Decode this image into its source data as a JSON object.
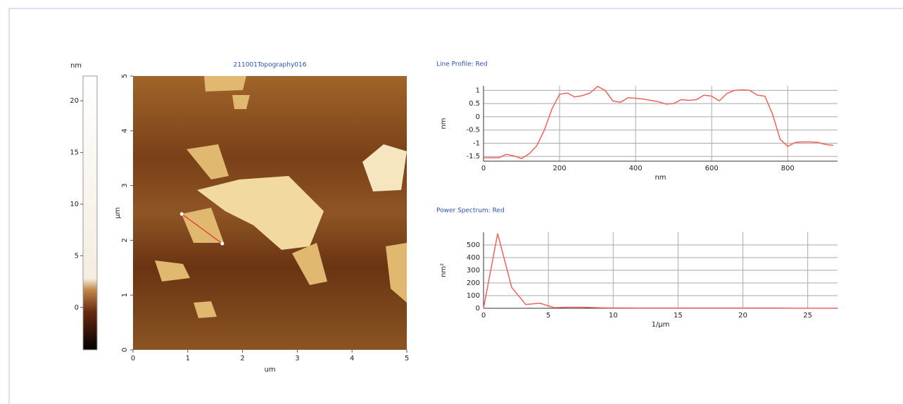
{
  "chart_data": [
    {
      "type": "colorbar",
      "ylabel": "nm",
      "ylim": [
        -4.1,
        22.4
      ],
      "yticks": [
        0,
        5,
        10,
        15,
        20
      ]
    },
    {
      "type": "image",
      "title": "211001Topography016",
      "xlabel": "um",
      "ylabel": "µm",
      "xlim": [
        0,
        5
      ],
      "ylim": [
        0,
        5
      ],
      "xticks": [
        0,
        1,
        2,
        3,
        4,
        5
      ],
      "yticks": [
        0,
        1,
        2,
        3,
        4,
        5
      ],
      "profile_line": {
        "color": "#e8403a",
        "x": [
          0.89,
          1.63
        ],
        "y": [
          2.48,
          1.94
        ]
      }
    },
    {
      "type": "line",
      "title": "Line Profile: Red",
      "xlabel": "nm",
      "ylabel": "nm",
      "color": "#f0625a",
      "grid": true,
      "x": [
        0,
        20,
        40,
        60,
        80,
        100,
        120,
        140,
        160,
        180,
        200,
        220,
        240,
        260,
        280,
        300,
        320,
        340,
        360,
        380,
        400,
        420,
        440,
        460,
        480,
        500,
        520,
        540,
        560,
        580,
        600,
        620,
        640,
        660,
        680,
        700,
        720,
        740,
        760,
        780,
        800,
        820,
        840,
        860,
        880,
        900,
        920
      ],
      "values": [
        -1.55,
        -1.55,
        -1.55,
        -1.42,
        -1.48,
        -1.58,
        -1.4,
        -1.1,
        -0.5,
        0.3,
        0.85,
        0.9,
        0.75,
        0.8,
        0.9,
        1.15,
        1.0,
        0.6,
        0.55,
        0.72,
        0.7,
        0.67,
        0.62,
        0.57,
        0.48,
        0.5,
        0.65,
        0.62,
        0.65,
        0.82,
        0.78,
        0.6,
        0.88,
        1.0,
        1.02,
        1.0,
        0.82,
        0.78,
        0.1,
        -0.85,
        -1.12,
        -0.97,
        -0.95,
        -0.95,
        -0.97,
        -1.05,
        -1.08
      ],
      "xlim": [
        0,
        931
      ],
      "ylim": [
        -1.68,
        1.17
      ],
      "xticks": [
        0,
        200,
        400,
        600,
        800
      ],
      "yticks": [
        -1.5,
        -1,
        -0.5,
        0,
        0.5,
        1
      ]
    },
    {
      "type": "line",
      "title": "Power Spectrum: Red",
      "xlabel": "1/µm",
      "ylabel": "nm²",
      "color": "#f0625a",
      "grid": true,
      "x": [
        0,
        1.09,
        2.17,
        3.26,
        4.35,
        5.43,
        6.52,
        7.61,
        8.7,
        9.78,
        10.87,
        11.96,
        13.04,
        14.13,
        15.22,
        16.3,
        17.39,
        18.48,
        19.57,
        20.65,
        21.74,
        22.83,
        23.91,
        25,
        26.09,
        27.17
      ],
      "values": [
        0,
        590,
        165,
        30,
        40,
        5,
        8,
        8,
        5,
        3,
        3,
        2,
        2,
        2,
        2,
        2,
        2,
        2,
        2,
        2,
        2,
        2,
        1,
        1,
        1,
        1
      ],
      "xlim": [
        0,
        27.3
      ],
      "ylim": [
        0,
        600
      ],
      "xticks": [
        0,
        5,
        10,
        15,
        20,
        25
      ],
      "yticks": [
        0,
        100,
        200,
        300,
        400,
        500
      ]
    }
  ]
}
